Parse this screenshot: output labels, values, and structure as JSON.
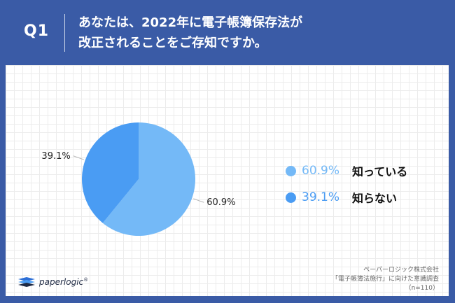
{
  "header": {
    "q_label": "Q1",
    "question_line1": "あなたは、2022年に電子帳簿保存法が",
    "question_line2": "改正されることをご存知ですか。"
  },
  "chart_data": {
    "type": "pie",
    "slices": [
      {
        "label": "知っている",
        "value": 60.9,
        "display": "60.9%",
        "color": "#74b9f7"
      },
      {
        "label": "知らない",
        "value": 39.1,
        "display": "39.1%",
        "color": "#4a9cf3"
      }
    ]
  },
  "credit": {
    "line1": "ペーパーロジック株式会社",
    "line2": "「電子帳簿法施行」に向けた意識調査",
    "line3": "（n=110）"
  },
  "logo": {
    "text": "paperlogic",
    "mark": "®"
  },
  "colors": {
    "background": "#3a5ba6",
    "card": "#ffffff"
  }
}
